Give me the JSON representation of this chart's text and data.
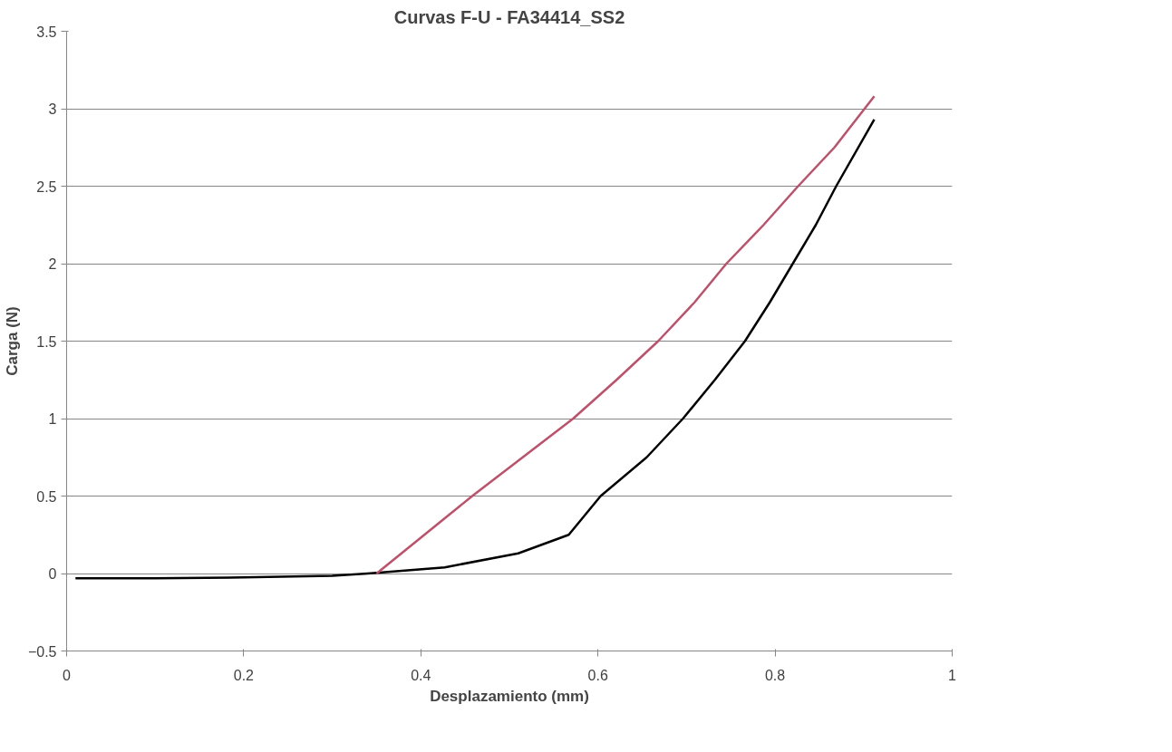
{
  "chart_data": {
    "type": "line",
    "title": "Curvas F-U - FA34414_SS2",
    "xlabel": "Desplazamiento (mm)",
    "ylabel": "Carga (N)",
    "xlim": [
      0,
      1
    ],
    "xticks": [
      0,
      0.2,
      0.4,
      0.6,
      0.8,
      1
    ],
    "ylim": [
      -0.5,
      3.5
    ],
    "yticks": [
      -0.5,
      0,
      0.5,
      1,
      1.5,
      2,
      2.5,
      3,
      3.5
    ],
    "grid": "y",
    "line_style": "solid",
    "series": [
      {
        "color": "#000000",
        "x": [
          0.01,
          0.1,
          0.2,
          0.3,
          0.34,
          0.427,
          0.51,
          0.567,
          0.603,
          0.655,
          0.696,
          0.732,
          0.766,
          0.794,
          0.82,
          0.846,
          0.869,
          0.912
        ],
        "values": [
          -0.03,
          -0.03,
          -0.025,
          -0.015,
          0,
          0.04,
          0.13,
          0.25,
          0.5,
          0.75,
          1.0,
          1.25,
          1.5,
          1.75,
          2.0,
          2.25,
          2.5,
          2.93
        ]
      },
      {
        "color": "#c0506a",
        "x": [
          0.35,
          0.404,
          0.458,
          0.515,
          0.572,
          0.621,
          0.668,
          0.709,
          0.745,
          0.787,
          0.826,
          0.867,
          0.912
        ],
        "values": [
          0,
          0.25,
          0.5,
          0.75,
          1.0,
          1.25,
          1.5,
          1.75,
          2.0,
          2.25,
          2.5,
          2.75,
          3.08
        ]
      }
    ]
  }
}
